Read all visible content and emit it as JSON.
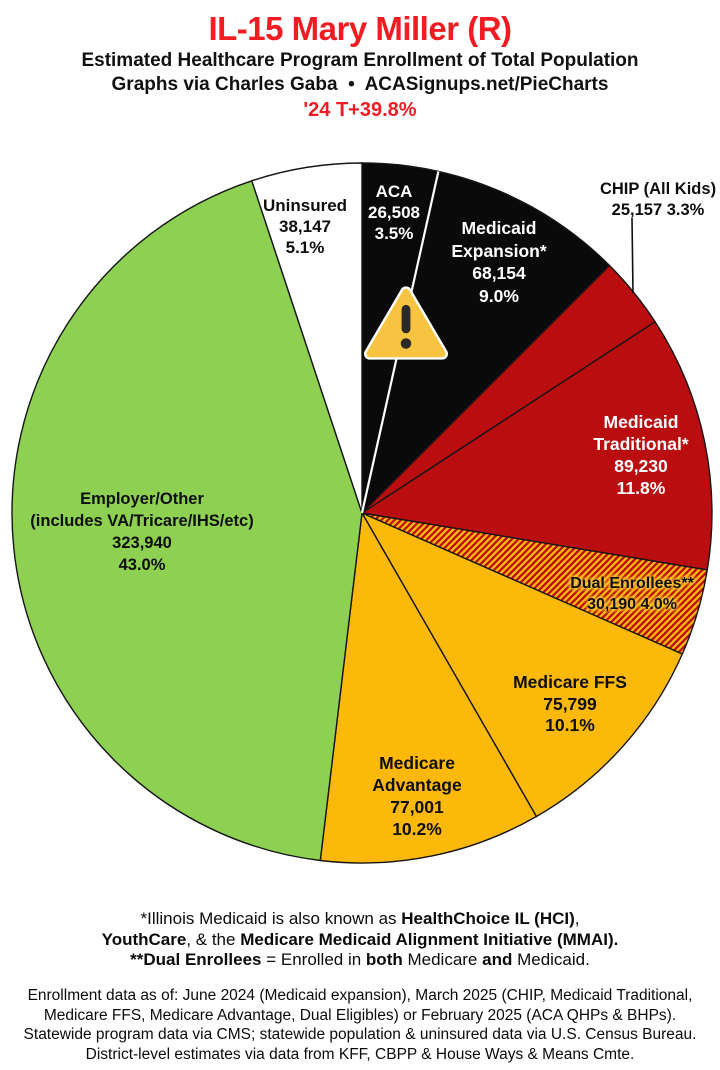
{
  "header": {
    "title": "IL-15 Mary Miller (R)",
    "title_color": "#f21c22",
    "subtitle": "Estimated Healthcare Program Enrollment of Total Population",
    "credit": "Graphs via Charles Gaba  •  ACASignups.net/PieCharts",
    "margin_note": "'24 T+39.8%",
    "margin_note_color": "#f21c22"
  },
  "icons": {
    "warning": "warning-triangle-exclamation"
  },
  "chart_data": {
    "type": "pie",
    "title": "IL-15 Mary Miller (R) — Estimated Healthcare Program Enrollment of Total Population",
    "start_angle_deg": 0,
    "direction": "clockwise",
    "legend_position": "labels-on-slices",
    "slices": [
      {
        "id": "aca",
        "label": "ACA",
        "value": 26508,
        "pct": 3.5,
        "fill": "#0a0a0a"
      },
      {
        "id": "medicaid-expansion",
        "label": "Medicaid Expansion*",
        "value": 68154,
        "pct": 9.0,
        "fill": "#0a0a0a"
      },
      {
        "id": "chip",
        "label": "CHIP (All Kids)",
        "value": 25157,
        "pct": 3.3,
        "fill": "#b90d10"
      },
      {
        "id": "medicaid-traditional",
        "label": "Medicaid Traditional*",
        "value": 89230,
        "pct": 11.8,
        "fill": "#b90d10"
      },
      {
        "id": "dual-enrollees",
        "label": "Dual Enrollees**",
        "value": 30190,
        "pct": 4.0,
        "fill": "hatch"
      },
      {
        "id": "medicare-ffs",
        "label": "Medicare FFS",
        "value": 75799,
        "pct": 10.1,
        "fill": "#fdb90a"
      },
      {
        "id": "medicare-advantage",
        "label": "Medicare Advantage",
        "value": 77001,
        "pct": 10.2,
        "fill": "#fdb90a"
      },
      {
        "id": "employer-other",
        "label": "Employer/Other (includes VA/Tricare/IHS/etc)",
        "value": 323940,
        "pct": 43.0,
        "fill": "#8dd052"
      },
      {
        "id": "uninsured",
        "label": "Uninsured",
        "value": 38147,
        "pct": 5.1,
        "fill": "#ffffff"
      }
    ],
    "hatch_colors": [
      "#b90d10",
      "#fdb90a"
    ]
  },
  "pie_labels": {
    "aca": {
      "lines": [
        "ACA",
        "26,508",
        "3.5%"
      ]
    },
    "expansion": {
      "lines": [
        "Medicaid",
        "Expansion*",
        "68,154",
        "9.0%"
      ]
    },
    "chip": {
      "lines": [
        "CHIP (All Kids)",
        "25,157 3.3%"
      ]
    },
    "traditional": {
      "lines": [
        "Medicaid",
        "Traditional*",
        "89,230",
        "11.8%"
      ]
    },
    "dual": {
      "lines": [
        "Dual Enrollees**",
        "30,190 4.0%"
      ]
    },
    "ffs": {
      "lines": [
        "Medicare FFS",
        "75,799",
        "10.1%"
      ]
    },
    "advantage": {
      "lines": [
        "Medicare",
        "Advantage",
        "77,001",
        "10.2%"
      ]
    },
    "employer": {
      "lines": [
        "Employer/Other",
        "(includes VA/Tricare/IHS/etc)",
        "323,940",
        "43.0%"
      ]
    },
    "uninsured": {
      "lines": [
        "Uninsured",
        "38,147",
        "5.1%"
      ]
    }
  },
  "notes": {
    "lines": [
      [
        {
          "t": "*Illinois Medicaid is also known as "
        },
        {
          "t": "HealthChoice IL (HCI)",
          "b": true
        },
        {
          "t": ","
        }
      ],
      [
        {
          "t": "YouthCare",
          "b": true
        },
        {
          "t": ", & the "
        },
        {
          "t": "Medicare Medicaid Alignment Initiative (MMAI).",
          "b": true
        }
      ],
      [
        {
          "t": "**Dual Enrollees",
          "b": true
        },
        {
          "t": " = Enrolled in "
        },
        {
          "t": "both",
          "b": true
        },
        {
          "t": " Medicare "
        },
        {
          "t": "and",
          "b": true
        },
        {
          "t": " Medicaid."
        }
      ]
    ]
  },
  "source": {
    "lines": [
      "Enrollment data as of: June 2024 (Medicaid expansion), March 2025 (CHIP, Medicaid Traditional,",
      "Medicare FFS, Medicare Advantage, Dual Eligibles) or February 2025 (ACA QHPs & BHPs).",
      "Statewide program data via CMS; statewide population & uninsured data via U.S. Census Bureau.",
      "District-level estimates via data from KFF, CBPP & House Ways & Means Cmte."
    ]
  }
}
